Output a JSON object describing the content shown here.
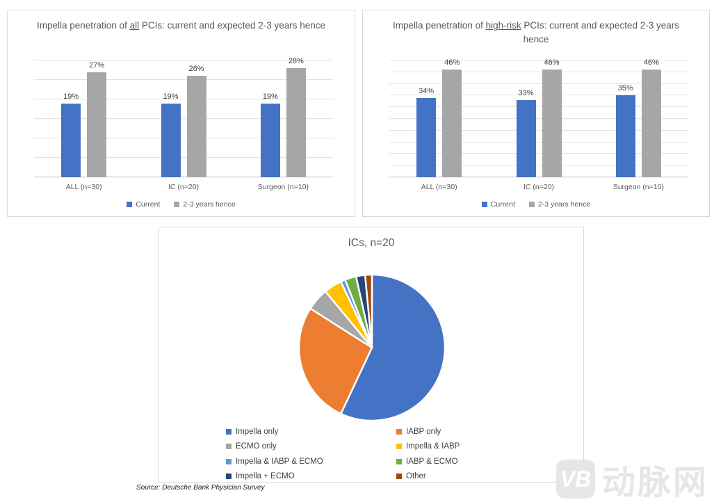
{
  "source_note": "Source: Deutsche Bank Physician Survey",
  "watermark": {
    "badge": "VB",
    "text": "动脉网"
  },
  "colors": {
    "current_blue": "#4472C4",
    "future_gray": "#A6A6A6",
    "title_gray": "#595959",
    "label_gray": "#404040"
  },
  "chart_data": [
    {
      "type": "bar",
      "title": "Impella penetration of all PCIs: current and expected 2-3 years hence",
      "title_parts": {
        "prefix": "Impella penetration of ",
        "underline": "all",
        "suffix": " PCIs: current and expected 2-3 years hence"
      },
      "categories": [
        "ALL (n=30)",
        "IC (n=20)",
        "Surgeon (n=10)"
      ],
      "series": [
        {
          "name": "Current",
          "color": "#4472C4",
          "values": [
            19,
            19,
            19
          ]
        },
        {
          "name": "2-3 years hence",
          "color": "#A6A6A6",
          "values": [
            27,
            26,
            28
          ]
        }
      ],
      "value_labels": [
        [
          "19%",
          "19%",
          "19%"
        ],
        [
          "27%",
          "26%",
          "28%"
        ]
      ],
      "ylim": [
        0,
        30
      ],
      "gridline_step": 5,
      "grid": true,
      "legend_position": "bottom"
    },
    {
      "type": "bar",
      "title": "Impella penetration of high-risk PCIs: current and expected 2-3 years hence",
      "title_parts": {
        "prefix": "Impella penetration of ",
        "underline": "high-risk",
        "suffix": " PCIs: current and expected 2-3 years hence"
      },
      "categories": [
        "ALL (n=30)",
        "IC (n=20)",
        "Surgeon (n=10)"
      ],
      "series": [
        {
          "name": "Current",
          "color": "#4472C4",
          "values": [
            34,
            33,
            35
          ]
        },
        {
          "name": "2-3 years hence",
          "color": "#A6A6A6",
          "values": [
            46,
            46,
            46
          ]
        }
      ],
      "value_labels": [
        [
          "34%",
          "33%",
          "35%"
        ],
        [
          "46%",
          "46%",
          "46%"
        ]
      ],
      "ylim": [
        0,
        50
      ],
      "gridline_step": 5,
      "grid": true,
      "legend_position": "bottom"
    },
    {
      "type": "pie",
      "title": "ICs, n=20",
      "slices": [
        {
          "label": "Impella only",
          "color": "#4472C4",
          "value": 57
        },
        {
          "label": "IABP only",
          "color": "#ED7D31",
          "value": 27
        },
        {
          "label": "ECMO only",
          "color": "#A6A6A6",
          "value": 5
        },
        {
          "label": "Impella & IABP",
          "color": "#FFC000",
          "value": 4
        },
        {
          "label": "Impella & IABP & ECMO",
          "color": "#5B9BD5",
          "value": 1
        },
        {
          "label": "IABP & ECMO",
          "color": "#70AD47",
          "value": 2.5
        },
        {
          "label": "Impella + ECMO",
          "color": "#264478",
          "value": 2
        },
        {
          "label": "Other",
          "color": "#9E480E",
          "value": 1.5
        }
      ],
      "legend_position": "bottom",
      "legend_columns": 2,
      "start_angle_deg": 0,
      "direction": "clockwise"
    }
  ]
}
